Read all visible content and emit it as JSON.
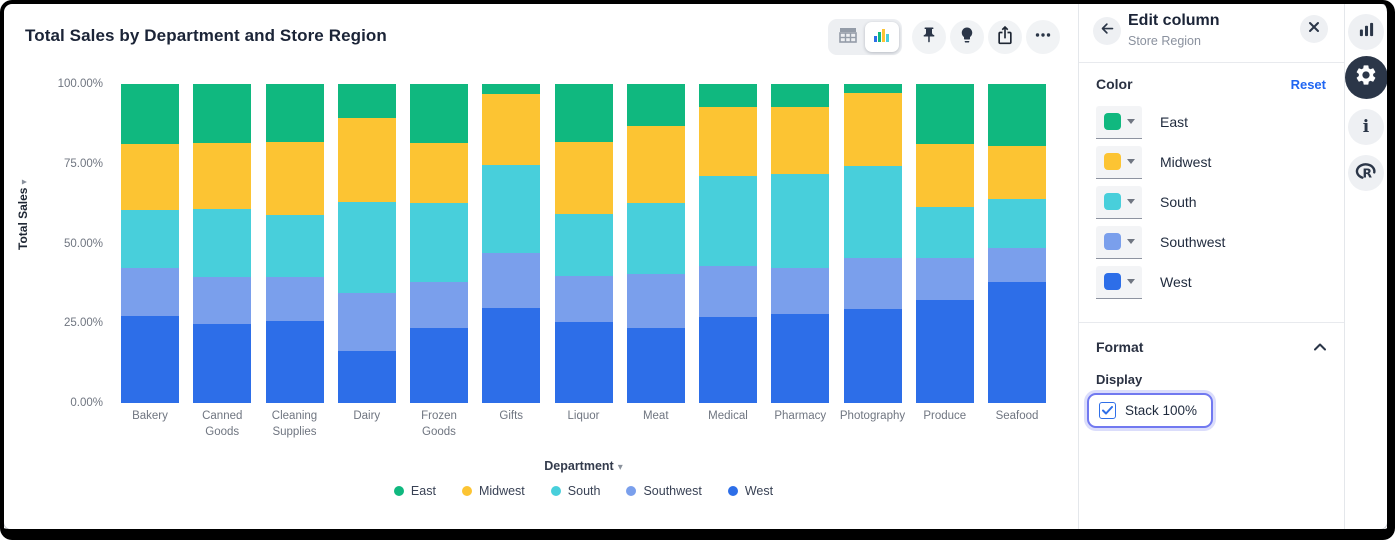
{
  "header": {
    "title": "Total Sales by Department and Store Region",
    "toolbar": {
      "buttons": [
        "table-view-icon",
        "chart-view-icon",
        "pin-icon",
        "lightbulb-icon",
        "share-icon",
        "ellipsis-icon"
      ],
      "active_view": "chart"
    }
  },
  "chart_data": {
    "type": "bar",
    "stacked": true,
    "stack_100": true,
    "grid": false,
    "legend_position": "bottom",
    "title": "Total Sales by Department and Store Region",
    "xlabel": "Department",
    "ylabel": "Total Sales",
    "ylim": [
      0,
      100
    ],
    "y_ticks": [
      "100.00%",
      "75.00%",
      "50.00%",
      "25.00%",
      "0.00%"
    ],
    "categories": [
      "Bakery",
      "Canned Goods",
      "Cleaning Supplies",
      "Dairy",
      "Frozen Goods",
      "Gifts",
      "Liquor",
      "Meat",
      "Medical",
      "Pharmacy",
      "Photography",
      "Produce",
      "Seafood"
    ],
    "series": [
      {
        "name": "East",
        "color": "#10b87f",
        "values": [
          18.8,
          18.5,
          18.1,
          10.8,
          18.6,
          3.1,
          18.1,
          13.1,
          7.3,
          7.1,
          2.9,
          18.9,
          19.4
        ]
      },
      {
        "name": "Midwest",
        "color": "#fcc433",
        "values": [
          20.7,
          20.8,
          23.0,
          26.3,
          18.8,
          22.3,
          22.5,
          24.1,
          21.5,
          21.2,
          22.7,
          19.7,
          16.7
        ]
      },
      {
        "name": "South",
        "color": "#48cfdb",
        "values": [
          18.1,
          21.3,
          19.3,
          28.5,
          24.8,
          27.7,
          19.5,
          22.4,
          28.4,
          29.5,
          28.8,
          15.8,
          15.2
        ]
      },
      {
        "name": "Southwest",
        "color": "#7a9fec",
        "values": [
          15.0,
          14.7,
          13.9,
          18.0,
          14.2,
          17.2,
          14.4,
          17.0,
          16.0,
          14.4,
          16.2,
          13.4,
          10.9
        ]
      },
      {
        "name": "West",
        "color": "#2d6ee8",
        "values": [
          27.4,
          24.7,
          25.7,
          16.4,
          23.6,
          29.7,
          25.5,
          23.4,
          26.8,
          27.8,
          29.4,
          32.2,
          37.8
        ]
      }
    ]
  },
  "panel": {
    "title": "Edit column",
    "subtitle": "Store Region",
    "color_section": {
      "label": "Color",
      "reset_label": "Reset",
      "items": [
        {
          "name": "East",
          "color": "#10b87f"
        },
        {
          "name": "Midwest",
          "color": "#fcc433"
        },
        {
          "name": "South",
          "color": "#48cfdb"
        },
        {
          "name": "Southwest",
          "color": "#7a9fec"
        },
        {
          "name": "West",
          "color": "#2d6ee8"
        }
      ]
    },
    "format_section": {
      "label": "Format",
      "display_label": "Display",
      "checkbox": {
        "label": "Stack 100%",
        "checked": true
      }
    }
  },
  "rail": {
    "buttons": [
      "bar-chart-icon",
      "gear-icon",
      "info-icon",
      "r-language-icon"
    ],
    "active": "gear"
  },
  "colors": {
    "accent_blue": "#2066f2",
    "focus_ring": "#7179f0",
    "checkbox_blue": "#2f6fe8",
    "dark_icon": "#2b3648"
  }
}
